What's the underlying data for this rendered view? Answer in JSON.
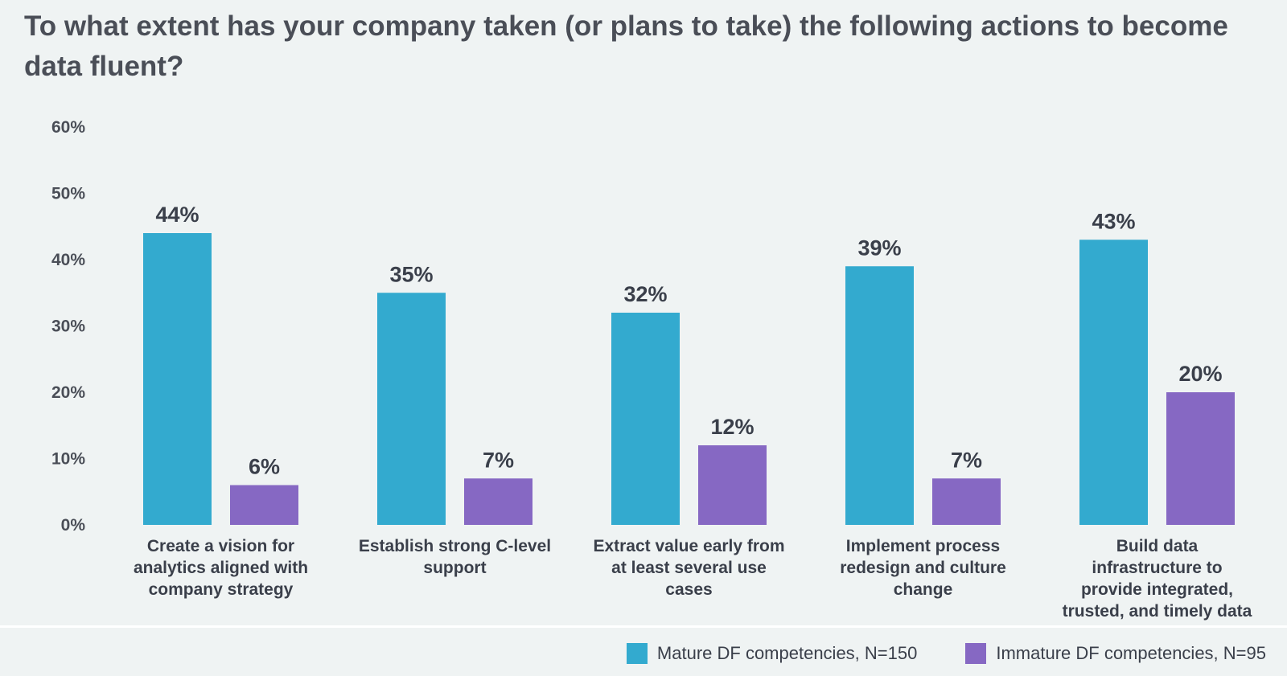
{
  "title": "To what extent has your company taken (or plans to take) the following actions to become data fluent?",
  "colors": {
    "mature": "#33aacf",
    "immature": "#8668c3"
  },
  "legend": {
    "mature_label": "Mature DF competencies, N=150",
    "immature_label": "Immature DF competencies, N=95"
  },
  "chart_data": {
    "type": "bar",
    "title": "To what extent has your company taken (or plans to take) the following actions to become data fluent?",
    "categories": [
      "Create a vision for analytics aligned with company strategy",
      "Establish strong C-level support",
      "Extract value early from at least several use cases",
      "Implement process redesign and culture change",
      "Build data infrastructure to provide integrated, trusted, and timely data"
    ],
    "series": [
      {
        "name": "Mature DF competencies, N=150",
        "values": [
          44,
          35,
          32,
          39,
          43
        ],
        "labels": [
          "44%",
          "35%",
          "32%",
          "39%",
          "43%"
        ]
      },
      {
        "name": "Immature DF competencies, N=95",
        "values": [
          6,
          7,
          12,
          7,
          20
        ],
        "labels": [
          "6%",
          "7%",
          "12%",
          "7%",
          "20%"
        ]
      }
    ],
    "yticks": [
      "0%",
      "10%",
      "20%",
      "30%",
      "40%",
      "50%",
      "60%"
    ],
    "ylim": [
      0,
      60
    ],
    "grid": false,
    "legend_position": "bottom-right"
  }
}
